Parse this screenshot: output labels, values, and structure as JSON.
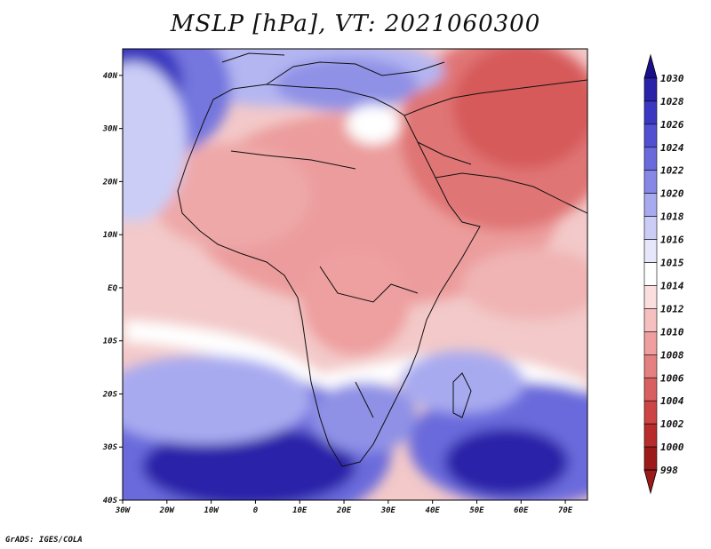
{
  "title": "MSLP [hPa], VT: 2021060300",
  "credit": "GrADS: IGES/COLA",
  "axes": {
    "lat_labels": [
      "40N",
      "30N",
      "20N",
      "10N",
      "EQ",
      "10S",
      "20S",
      "30S",
      "40S"
    ],
    "lon_labels": [
      "30W",
      "20W",
      "10W",
      "0",
      "10E",
      "20E",
      "30E",
      "40E",
      "50E",
      "60E",
      "70E"
    ],
    "lat_range": [
      -40,
      45
    ],
    "lon_range": [
      -30,
      75
    ]
  },
  "colorbar": {
    "levels": [
      "1030",
      "1028",
      "1026",
      "1024",
      "1022",
      "1020",
      "1018",
      "1016",
      "1015",
      "1014",
      "1012",
      "1010",
      "1008",
      "1006",
      "1004",
      "1002",
      "1000",
      "998"
    ],
    "colors": [
      "#1c0f8c",
      "#2a22a8",
      "#3a38c0",
      "#5150d0",
      "#6a6adc",
      "#8788e6",
      "#a8aaf0",
      "#cbcdf7",
      "#e6e7fb",
      "#ffffff",
      "#fbdede",
      "#f6c0c0",
      "#ef9f9f",
      "#e58080",
      "#d96060",
      "#cc4444",
      "#b82c2c",
      "#9c1a1a"
    ]
  }
}
